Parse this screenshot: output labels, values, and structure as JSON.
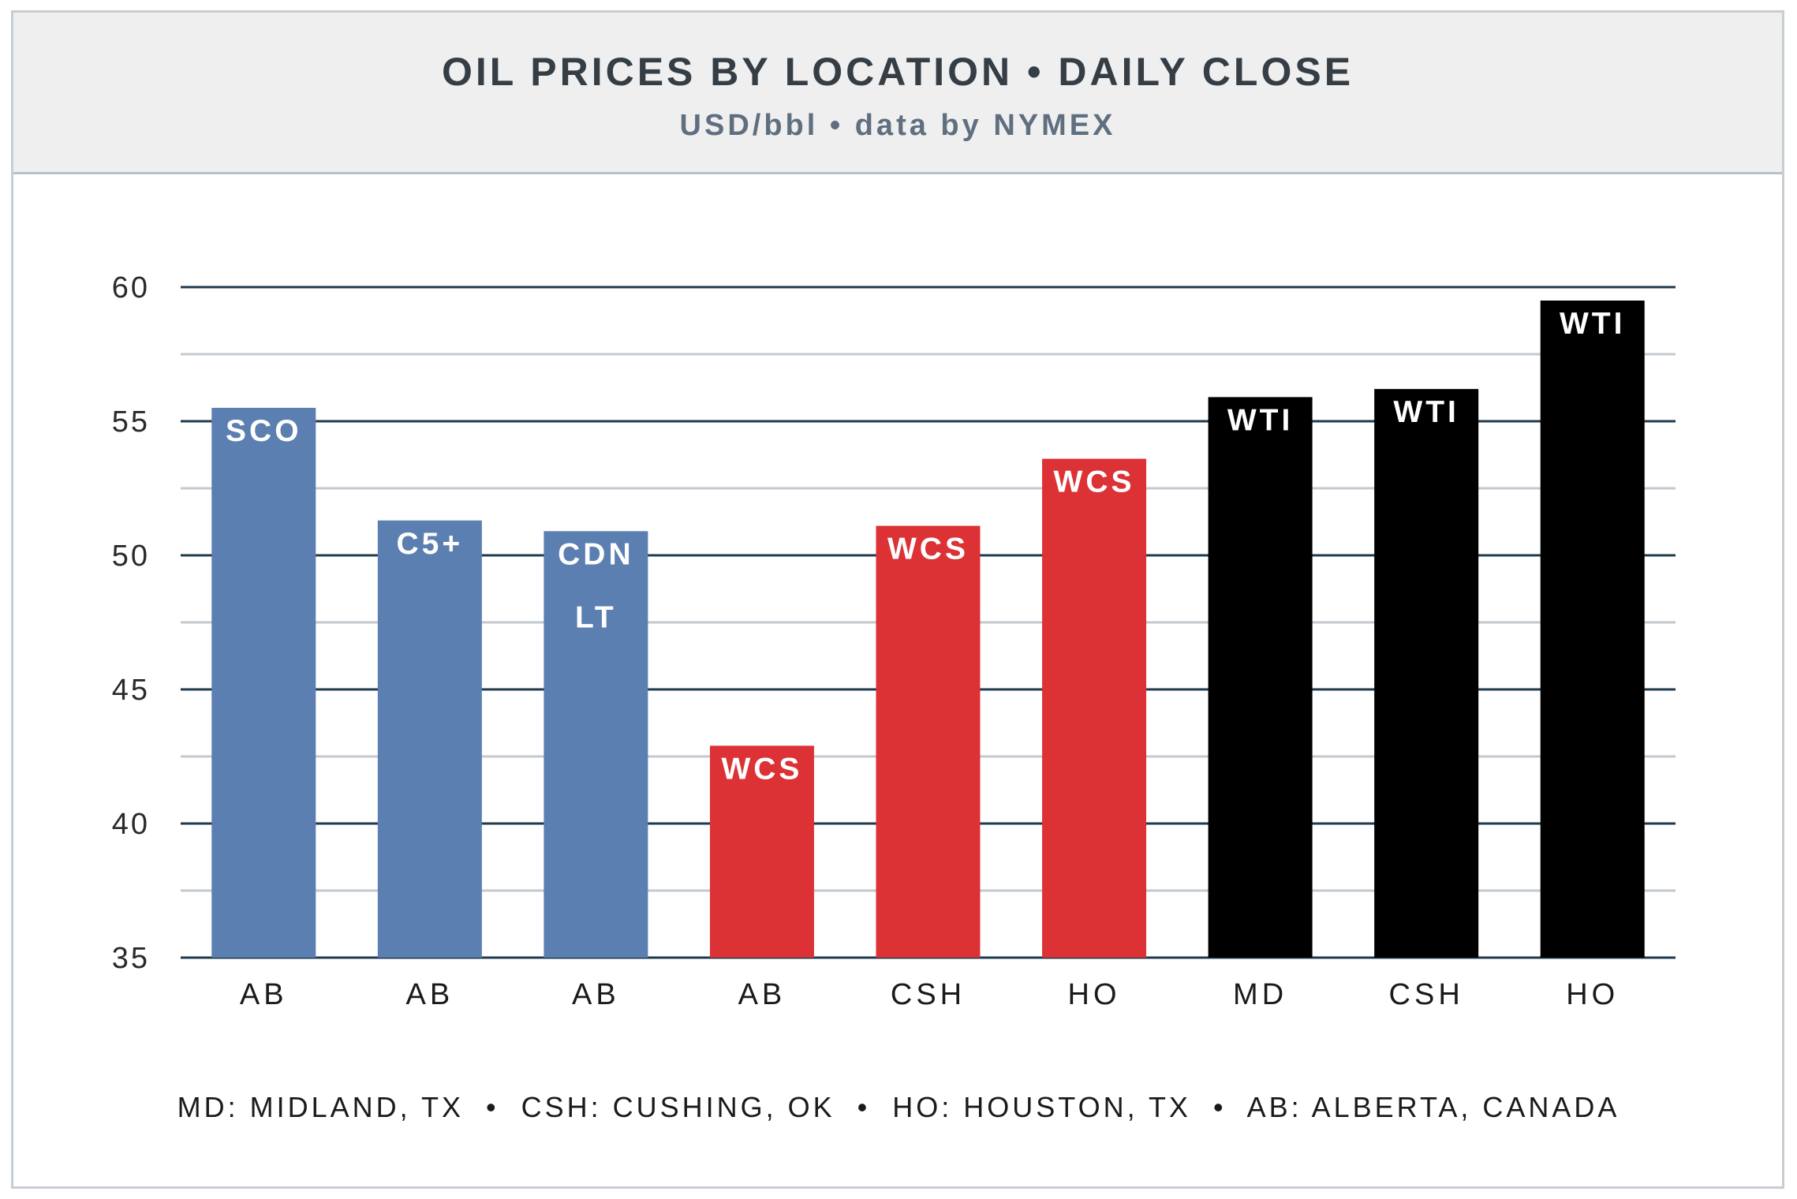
{
  "header": {
    "title": "OIL PRICES BY LOCATION • DAILY CLOSE",
    "subtitle": "USD/bbl • data by NYMEX"
  },
  "footnote": "MD: MIDLAND, TX  •  CSH: CUSHING, OK  •  HO: HOUSTON, TX  •  AB: ALBERTA, CANADA",
  "colors": {
    "blue": "#5b7fb0",
    "red": "#dc3236",
    "black": "#000000",
    "gridline_major": "#1f3a4d",
    "gridline_minor": "#c3c9cf",
    "axis_text": "#2a2a2a",
    "bar_label_text": "#ffffff"
  },
  "chart_data": {
    "type": "bar",
    "title": "OIL PRICES BY LOCATION • DAILY CLOSE",
    "subtitle": "USD/bbl • data by NYMEX",
    "xlabel": "",
    "ylabel": "",
    "ylim": [
      35,
      60
    ],
    "yticks": [
      35,
      40,
      45,
      50,
      55,
      60
    ],
    "minor_gridlines": [
      37.5,
      42.5,
      47.5,
      52.5,
      57.5
    ],
    "grid": true,
    "bars": [
      {
        "category": "AB",
        "label": "SCO",
        "value": 55.5,
        "color": "#5b7fb0"
      },
      {
        "category": "AB",
        "label": "C5+",
        "value": 51.3,
        "color": "#5b7fb0"
      },
      {
        "category": "AB",
        "label": "CDN LT",
        "value": 50.9,
        "color": "#5b7fb0"
      },
      {
        "category": "AB",
        "label": "WCS",
        "value": 42.9,
        "color": "#dc3236"
      },
      {
        "category": "CSH",
        "label": "WCS",
        "value": 51.1,
        "color": "#dc3236"
      },
      {
        "category": "HO",
        "label": "WCS",
        "value": 53.6,
        "color": "#dc3236"
      },
      {
        "category": "MD",
        "label": "WTI",
        "value": 55.9,
        "color": "#000000"
      },
      {
        "category": "CSH",
        "label": "WTI",
        "value": 56.2,
        "color": "#000000"
      },
      {
        "category": "HO",
        "label": "WTI",
        "value": 59.5,
        "color": "#000000"
      }
    ]
  }
}
